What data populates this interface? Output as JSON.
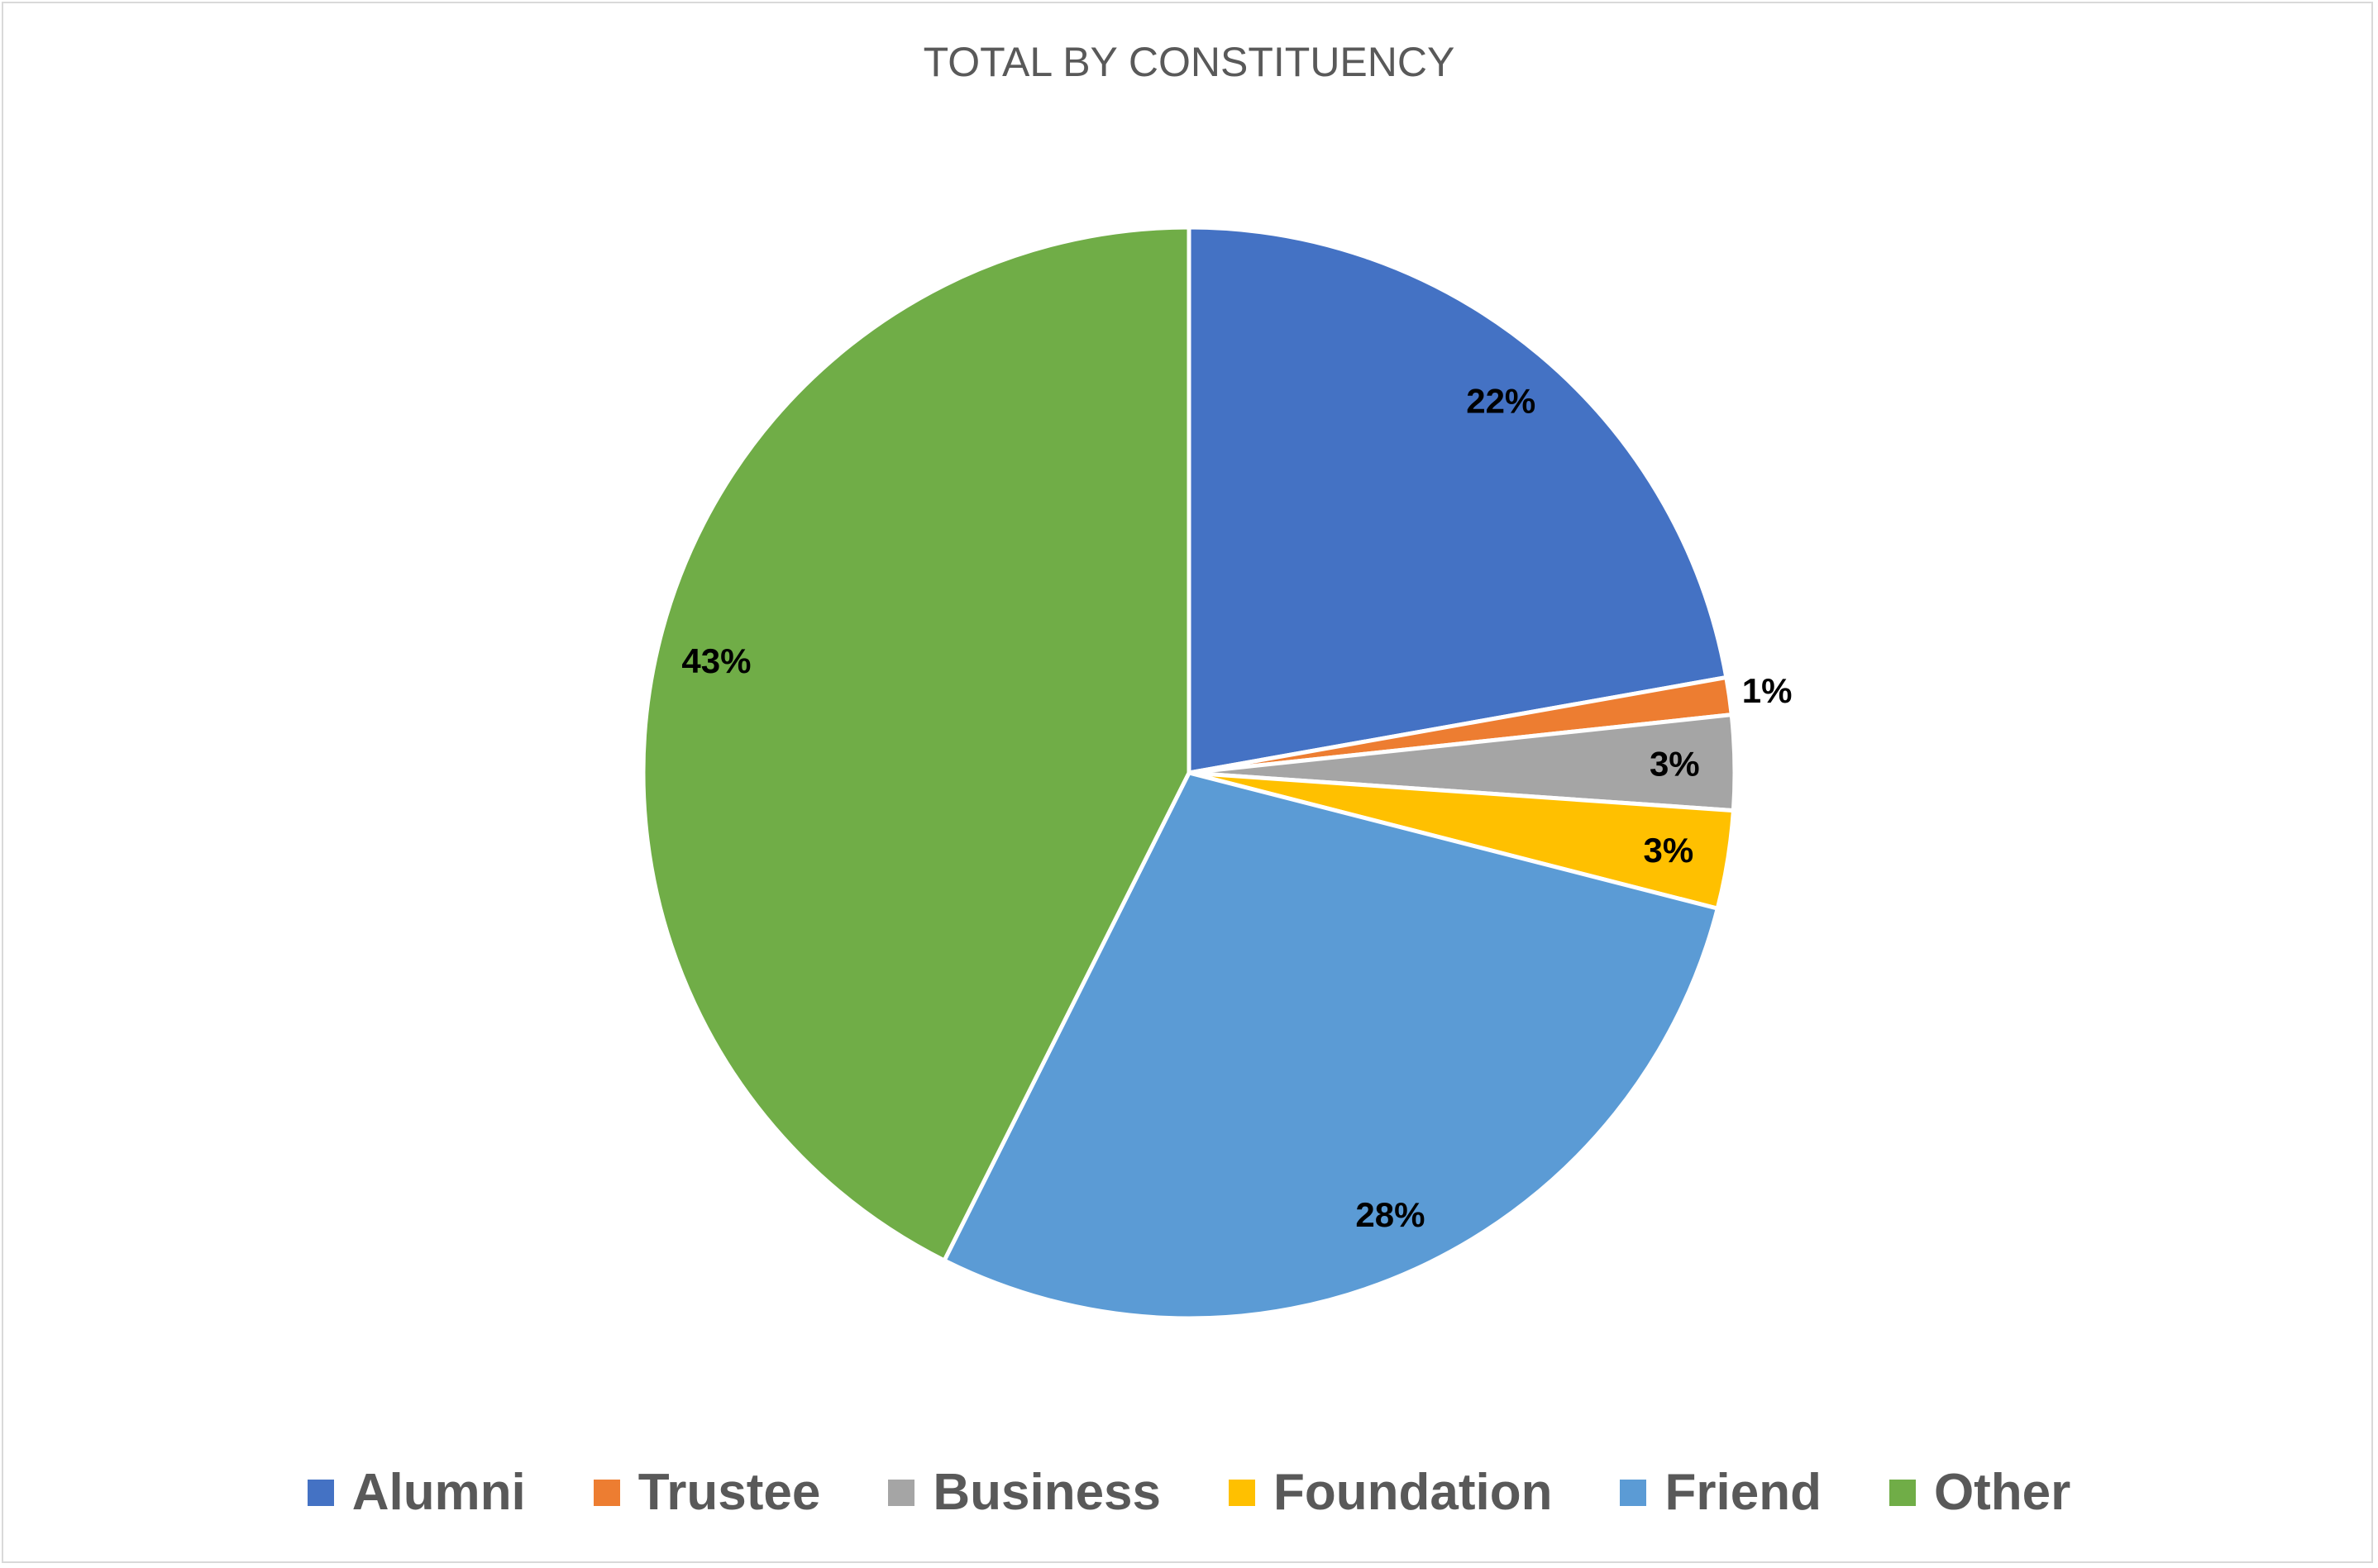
{
  "chart_data": {
    "type": "pie",
    "title": "TOTAL BY CONSTITUENCY",
    "categories": [
      "Alumni",
      "Trustee",
      "Business",
      "Foundation",
      "Friend",
      "Other"
    ],
    "values": [
      22.2,
      1.1,
      2.8,
      2.9,
      28.4,
      42.6
    ],
    "data_labels": [
      "22%",
      "1%",
      "3%",
      "3%",
      "28%",
      "43%"
    ],
    "colors": [
      "#4472C4",
      "#ED7D31",
      "#A5A5A5",
      "#FFC000",
      "#5B9BD5",
      "#70AD47"
    ],
    "legend_position": "bottom",
    "start_angle_deg": 0,
    "direction": "clockwise"
  }
}
